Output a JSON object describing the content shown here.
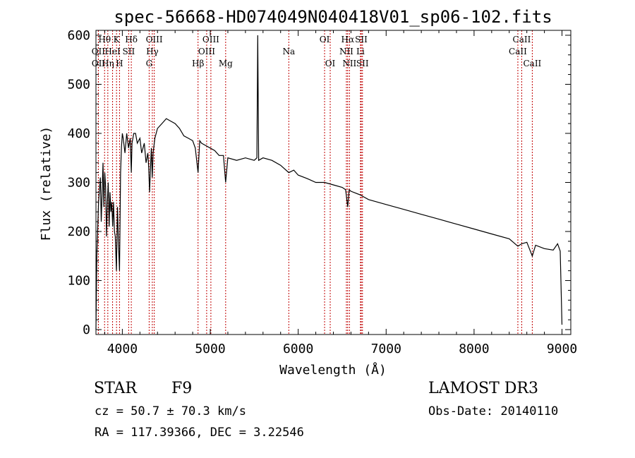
{
  "chart_data": {
    "type": "line",
    "title": "spec-56668-HD074049N040418V01_sp06-102.fits",
    "xlabel": "Wavelength (Å)",
    "ylabel": "Flux (relative)",
    "xlim": [
      3700,
      9100
    ],
    "ylim": [
      -10,
      610
    ],
    "xticks": [
      4000,
      5000,
      6000,
      7000,
      8000,
      9000
    ],
    "yticks": [
      0,
      100,
      200,
      300,
      400,
      500,
      600
    ],
    "series": [
      {
        "name": "flux",
        "x": [
          3700,
          3710,
          3730,
          3750,
          3760,
          3780,
          3790,
          3800,
          3810,
          3820,
          3830,
          3840,
          3850,
          3860,
          3870,
          3880,
          3890,
          3900,
          3910,
          3920,
          3933,
          3945,
          3955,
          3968,
          3980,
          3990,
          4000,
          4010,
          4030,
          4050,
          4070,
          4090,
          4102,
          4110,
          4130,
          4150,
          4170,
          4200,
          4220,
          4250,
          4270,
          4290,
          4300,
          4310,
          4320,
          4330,
          4340,
          4350,
          4370,
          4400,
          4450,
          4500,
          4550,
          4600,
          4650,
          4700,
          4750,
          4800,
          4830,
          4861,
          4880,
          4900,
          4950,
          5000,
          5050,
          5100,
          5150,
          5175,
          5200,
          5300,
          5400,
          5500,
          5530,
          5540,
          5550,
          5600,
          5700,
          5800,
          5893,
          5950,
          6000,
          6100,
          6200,
          6300,
          6400,
          6500,
          6540,
          6563,
          6580,
          6600,
          6700,
          6800,
          7000,
          7200,
          7400,
          7600,
          7800,
          8000,
          8200,
          8400,
          8498,
          8542,
          8600,
          8662,
          8700,
          8800,
          8900,
          8950,
          8980,
          9000
        ],
        "y": [
          0,
          150,
          260,
          310,
          220,
          340,
          250,
          320,
          290,
          190,
          260,
          300,
          210,
          280,
          240,
          260,
          210,
          260,
          200,
          190,
          120,
          250,
          180,
          120,
          320,
          370,
          400,
          390,
          360,
          400,
          370,
          390,
          320,
          380,
          400,
          400,
          380,
          390,
          360,
          380,
          340,
          360,
          330,
          280,
          330,
          370,
          310,
          360,
          390,
          410,
          420,
          430,
          425,
          420,
          410,
          395,
          390,
          385,
          370,
          320,
          385,
          380,
          375,
          370,
          365,
          355,
          355,
          300,
          350,
          345,
          350,
          345,
          350,
          600,
          345,
          350,
          345,
          335,
          320,
          325,
          315,
          308,
          300,
          300,
          295,
          290,
          285,
          250,
          285,
          282,
          275,
          265,
          255,
          245,
          235,
          225,
          215,
          205,
          195,
          185,
          170,
          175,
          178,
          150,
          172,
          165,
          162,
          175,
          160,
          10
        ]
      }
    ],
    "lines": [
      {
        "label": "Hθ",
        "x": 3798,
        "row": 0
      },
      {
        "label": "OII",
        "x": 3727,
        "row": 1
      },
      {
        "label": "OII",
        "x": 3728,
        "row": 2
      },
      {
        "label": "Hη",
        "x": 3835,
        "row": 2
      },
      {
        "label": "HeI",
        "x": 3889,
        "row": 1
      },
      {
        "label": "K",
        "x": 3934,
        "row": 0
      },
      {
        "label": "H",
        "x": 3968,
        "row": 2
      },
      {
        "label": "SII",
        "x": 4072,
        "row": 1
      },
      {
        "label": "Hδ",
        "x": 4102,
        "row": 0
      },
      {
        "label": "OIII",
        "x": 4363,
        "row": 0
      },
      {
        "label": "Hγ",
        "x": 4341,
        "row": 1
      },
      {
        "label": "G",
        "x": 4305,
        "row": 2
      },
      {
        "label": "Hβ",
        "x": 4861,
        "row": 2
      },
      {
        "label": "OIII",
        "x": 5007,
        "row": 0
      },
      {
        "label": "OIII",
        "x": 4959,
        "row": 1
      },
      {
        "label": "Mg",
        "x": 5175,
        "row": 2
      },
      {
        "label": "Na",
        "x": 5893,
        "row": 1
      },
      {
        "label": "OI",
        "x": 6300,
        "row": 0
      },
      {
        "label": "OI",
        "x": 6364,
        "row": 2
      },
      {
        "label": "Hα",
        "x": 6563,
        "row": 0
      },
      {
        "label": "NII",
        "x": 6548,
        "row": 1
      },
      {
        "label": "NII",
        "x": 6583,
        "row": 2
      },
      {
        "label": "SII",
        "x": 6717,
        "row": 0
      },
      {
        "label": "Li",
        "x": 6708,
        "row": 1
      },
      {
        "label": "SII",
        "x": 6731,
        "row": 2
      },
      {
        "label": "CaII",
        "x": 8542,
        "row": 0
      },
      {
        "label": "CaII",
        "x": 8498,
        "row": 1
      },
      {
        "label": "CaII",
        "x": 8662,
        "row": 2
      }
    ]
  },
  "info": {
    "object_type": "STAR",
    "subclass": "F9",
    "survey": "LAMOST DR3",
    "cz": "cz = 50.7 ± 70.3 km/s",
    "obs_date": "Obs-Date: 20140110",
    "radec": "RA = 117.39366, DEC =   3.22546"
  }
}
